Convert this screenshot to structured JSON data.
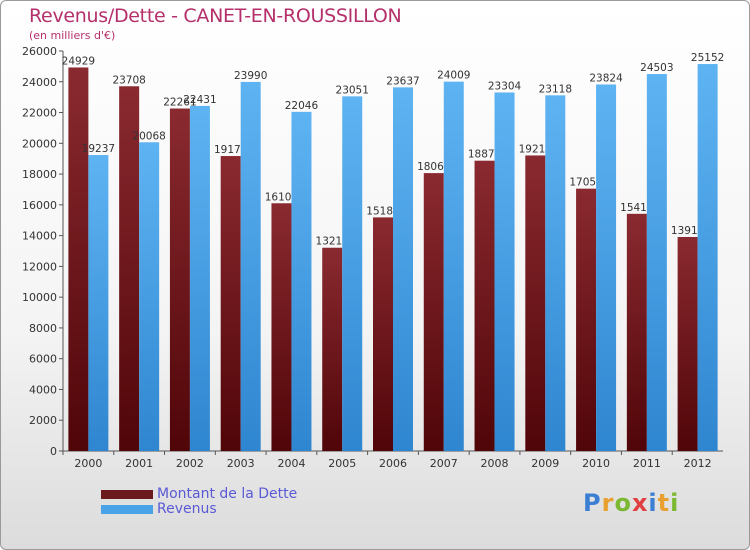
{
  "header": {
    "title": "Revenus/Dette - CANET-EN-ROUSSILLON",
    "subtitle": "(en milliers d'€)"
  },
  "colors": {
    "dette": "#6b1a1e",
    "revenus": "#4aa3e6",
    "title": "#b5306b",
    "legend_text": "#5a5ad6"
  },
  "legend": {
    "items": [
      {
        "label": "Montant de la Dette",
        "color": "#6b1a1e"
      },
      {
        "label": "Revenus",
        "color": "#4aa3e6"
      }
    ]
  },
  "logo": {
    "letters": [
      {
        "ch": "P",
        "color": "#3b7fd4"
      },
      {
        "ch": "r",
        "color": "#e8a030"
      },
      {
        "ch": "o",
        "color": "#7cb832"
      },
      {
        "ch": "x",
        "color": "#e04040"
      },
      {
        "ch": "i",
        "color": "#3b7fd4"
      },
      {
        "ch": "t",
        "color": "#e8a030"
      },
      {
        "ch": "i",
        "color": "#7cb832"
      }
    ]
  },
  "chart_data": {
    "type": "bar",
    "title": "Revenus/Dette - CANET-EN-ROUSSILLON",
    "ylabel": "",
    "xlabel": "",
    "ylim": [
      0,
      26000
    ],
    "ytick_step": 2000,
    "grid": false,
    "legend_position": "bottom-left",
    "categories": [
      "2000",
      "2001",
      "2002",
      "2003",
      "2004",
      "2005",
      "2006",
      "2007",
      "2008",
      "2009",
      "2010",
      "2011",
      "2012"
    ],
    "series": [
      {
        "name": "Montant de la Dette",
        "values": [
          24929,
          23708,
          22261,
          19172,
          16103,
          13212,
          15184,
          18064,
          18870,
          19210,
          17052,
          15417,
          13910
        ],
        "labels": [
          "24929",
          "23708",
          "22261",
          "19172",
          "16103",
          "13212",
          "15184",
          "18064",
          "18870",
          "19210",
          "17052",
          "15417",
          "13910"
        ]
      },
      {
        "name": "Revenus",
        "values": [
          19237,
          20068,
          22431,
          23990,
          22046,
          23051,
          23637,
          24009,
          23304,
          23118,
          23824,
          24503,
          25152
        ],
        "labels": [
          "19237",
          "20068",
          "22431",
          "23990",
          "22046",
          "23051",
          "23637",
          "24009",
          "23304",
          "23118",
          "23824",
          "24503",
          "25152"
        ]
      }
    ]
  }
}
